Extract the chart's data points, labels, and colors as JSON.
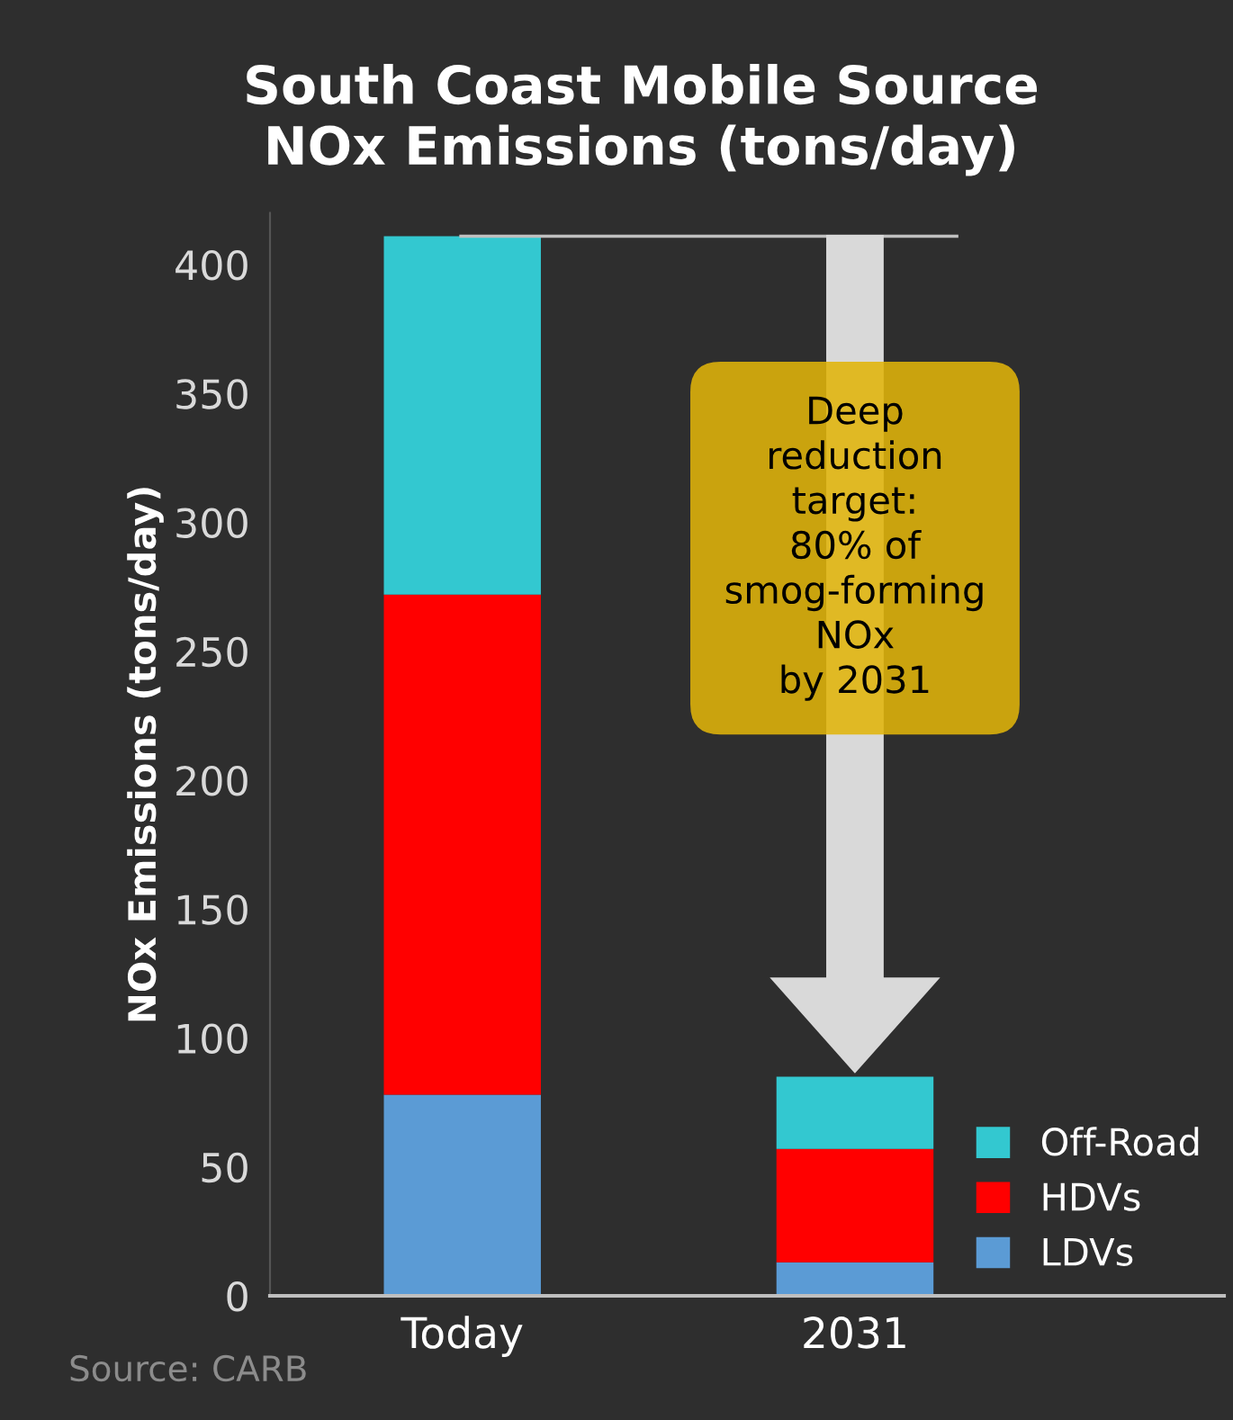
{
  "chart_data": {
    "type": "bar",
    "title": "South Coast Mobile Source\nNOx Emissions (tons/day)",
    "ylabel": "NOx Emissions (tons/day)",
    "categories": [
      "Today",
      "2031"
    ],
    "stacked": true,
    "series": [
      {
        "name": "LDVs",
        "color": "#5b9bd5",
        "values": [
          78,
          13
        ]
      },
      {
        "name": "HDVs",
        "color": "#ff0000",
        "values": [
          194,
          44
        ]
      },
      {
        "name": "Off-Road",
        "color": "#33c8d0",
        "values": [
          139,
          28
        ]
      }
    ],
    "ylim": [
      0,
      420
    ],
    "yticks": [
      0,
      50,
      100,
      150,
      200,
      250,
      300,
      350,
      400
    ],
    "grid": false,
    "legend": "bottom right",
    "ref_lines": [
      {
        "axis": "y",
        "value": 411,
        "color": "#bfbfbf"
      }
    ],
    "annotations": [
      "Deep\nreduction\ntarget:\n80% of\nsmog-forming\nNOx\nby 2031",
      "Source: CARB"
    ]
  }
}
